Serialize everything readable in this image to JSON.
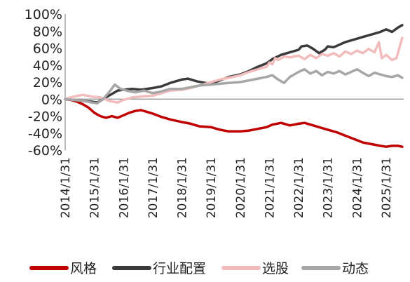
{
  "chart_data": {
    "type": "line",
    "title": "",
    "xlabel": "",
    "ylabel": "",
    "ylim": [
      -60,
      100
    ],
    "y_ticks": [
      "100%",
      "80%",
      "60%",
      "40%",
      "20%",
      "0%",
      "-20%",
      "-40%",
      "-60%"
    ],
    "y_tick_values": [
      100,
      80,
      60,
      40,
      20,
      0,
      -20,
      -40,
      -60
    ],
    "x_range": [
      2014.0,
      2025.6
    ],
    "x_ticks": [
      "2014/1/31",
      "2015/1/31",
      "2016/1/31",
      "2017/1/31",
      "2018/1/31",
      "2019/1/31",
      "2020/1/31",
      "2021/1/31",
      "2022/1/31",
      "2023/1/31",
      "2024/1/31",
      "2025/1/31"
    ],
    "x_tick_values": [
      2014.0,
      2015.0,
      2016.0,
      2017.0,
      2018.0,
      2019.0,
      2020.0,
      2021.0,
      2022.0,
      2023.0,
      2024.0,
      2025.0
    ],
    "grid": false,
    "legend_position": "bottom",
    "series": [
      {
        "name": "风格",
        "color": "#c00000",
        "points": [
          [
            2014.0,
            0
          ],
          [
            2014.2,
            -1
          ],
          [
            2014.4,
            -3
          ],
          [
            2014.6,
            -6
          ],
          [
            2014.8,
            -10
          ],
          [
            2015.0,
            -16
          ],
          [
            2015.2,
            -20
          ],
          [
            2015.4,
            -22
          ],
          [
            2015.6,
            -20
          ],
          [
            2015.8,
            -22
          ],
          [
            2016.0,
            -19
          ],
          [
            2016.2,
            -16
          ],
          [
            2016.4,
            -14
          ],
          [
            2016.6,
            -13
          ],
          [
            2016.8,
            -15
          ],
          [
            2017.0,
            -17
          ],
          [
            2017.3,
            -21
          ],
          [
            2017.6,
            -24
          ],
          [
            2018.0,
            -27
          ],
          [
            2018.3,
            -29
          ],
          [
            2018.6,
            -32
          ],
          [
            2019.0,
            -33
          ],
          [
            2019.3,
            -36
          ],
          [
            2019.6,
            -38
          ],
          [
            2020.0,
            -38
          ],
          [
            2020.3,
            -37
          ],
          [
            2020.6,
            -35
          ],
          [
            2020.9,
            -33
          ],
          [
            2021.1,
            -30
          ],
          [
            2021.4,
            -28
          ],
          [
            2021.7,
            -31
          ],
          [
            2022.0,
            -29
          ],
          [
            2022.2,
            -28
          ],
          [
            2022.4,
            -30
          ],
          [
            2022.7,
            -33
          ],
          [
            2023.0,
            -36
          ],
          [
            2023.3,
            -39
          ],
          [
            2023.6,
            -43
          ],
          [
            2023.9,
            -47
          ],
          [
            2024.2,
            -51
          ],
          [
            2024.5,
            -53
          ],
          [
            2024.8,
            -55
          ],
          [
            2025.0,
            -56
          ],
          [
            2025.2,
            -55
          ],
          [
            2025.4,
            -55
          ],
          [
            2025.55,
            -56
          ]
        ]
      },
      {
        "name": "行业配置",
        "color": "#3a3a3a",
        "points": [
          [
            2014.0,
            0
          ],
          [
            2014.3,
            -1
          ],
          [
            2014.6,
            -2
          ],
          [
            2014.9,
            -3
          ],
          [
            2015.1,
            -4
          ],
          [
            2015.4,
            2
          ],
          [
            2015.6,
            6
          ],
          [
            2015.8,
            10
          ],
          [
            2016.0,
            11
          ],
          [
            2016.3,
            12
          ],
          [
            2016.6,
            11
          ],
          [
            2017.0,
            13
          ],
          [
            2017.3,
            15
          ],
          [
            2017.6,
            19
          ],
          [
            2018.0,
            23
          ],
          [
            2018.2,
            24
          ],
          [
            2018.5,
            21
          ],
          [
            2018.8,
            19
          ],
          [
            2019.0,
            18
          ],
          [
            2019.3,
            22
          ],
          [
            2019.6,
            26
          ],
          [
            2020.0,
            29
          ],
          [
            2020.3,
            33
          ],
          [
            2020.6,
            38
          ],
          [
            2020.9,
            42
          ],
          [
            2021.1,
            47
          ],
          [
            2021.4,
            52
          ],
          [
            2021.7,
            55
          ],
          [
            2022.0,
            58
          ],
          [
            2022.1,
            62
          ],
          [
            2022.3,
            63
          ],
          [
            2022.5,
            59
          ],
          [
            2022.7,
            54
          ],
          [
            2022.9,
            58
          ],
          [
            2023.0,
            62
          ],
          [
            2023.2,
            61
          ],
          [
            2023.4,
            64
          ],
          [
            2023.6,
            67
          ],
          [
            2023.8,
            69
          ],
          [
            2024.0,
            71
          ],
          [
            2024.2,
            73
          ],
          [
            2024.4,
            75
          ],
          [
            2024.6,
            77
          ],
          [
            2024.8,
            79
          ],
          [
            2025.0,
            82
          ],
          [
            2025.2,
            79
          ],
          [
            2025.4,
            84
          ],
          [
            2025.55,
            87
          ]
        ]
      },
      {
        "name": "选股",
        "color": "#f2bcbc",
        "points": [
          [
            2014.0,
            0
          ],
          [
            2014.3,
            3
          ],
          [
            2014.6,
            5
          ],
          [
            2014.9,
            3
          ],
          [
            2015.2,
            2
          ],
          [
            2015.5,
            -2
          ],
          [
            2015.8,
            -4
          ],
          [
            2016.0,
            -1
          ],
          [
            2016.3,
            2
          ],
          [
            2016.6,
            3
          ],
          [
            2017.0,
            4
          ],
          [
            2017.3,
            7
          ],
          [
            2017.6,
            10
          ],
          [
            2018.0,
            11
          ],
          [
            2018.3,
            13
          ],
          [
            2018.6,
            16
          ],
          [
            2019.0,
            20
          ],
          [
            2019.3,
            23
          ],
          [
            2019.6,
            25
          ],
          [
            2020.0,
            28
          ],
          [
            2020.3,
            32
          ],
          [
            2020.6,
            35
          ],
          [
            2020.9,
            38
          ],
          [
            2021.0,
            43
          ],
          [
            2021.1,
            41
          ],
          [
            2021.2,
            48
          ],
          [
            2021.3,
            46
          ],
          [
            2021.5,
            50
          ],
          [
            2021.7,
            49
          ],
          [
            2022.0,
            51
          ],
          [
            2022.2,
            47
          ],
          [
            2022.4,
            52
          ],
          [
            2022.6,
            48
          ],
          [
            2022.8,
            53
          ],
          [
            2023.0,
            51
          ],
          [
            2023.2,
            54
          ],
          [
            2023.4,
            50
          ],
          [
            2023.6,
            56
          ],
          [
            2023.8,
            53
          ],
          [
            2024.0,
            57
          ],
          [
            2024.2,
            54
          ],
          [
            2024.4,
            59
          ],
          [
            2024.6,
            55
          ],
          [
            2024.75,
            67
          ],
          [
            2024.85,
            48
          ],
          [
            2025.0,
            52
          ],
          [
            2025.2,
            46
          ],
          [
            2025.35,
            48
          ],
          [
            2025.45,
            60
          ],
          [
            2025.55,
            72
          ]
        ]
      },
      {
        "name": "动态",
        "color": "#a6a6a6",
        "points": [
          [
            2014.0,
            0
          ],
          [
            2014.3,
            -1
          ],
          [
            2014.6,
            -2
          ],
          [
            2014.9,
            -4
          ],
          [
            2015.1,
            -5
          ],
          [
            2015.3,
            0
          ],
          [
            2015.5,
            8
          ],
          [
            2015.7,
            17
          ],
          [
            2015.9,
            12
          ],
          [
            2016.1,
            10
          ],
          [
            2016.4,
            8
          ],
          [
            2016.7,
            10
          ],
          [
            2017.0,
            7
          ],
          [
            2017.3,
            9
          ],
          [
            2017.6,
            12
          ],
          [
            2018.0,
            12
          ],
          [
            2018.3,
            14
          ],
          [
            2018.6,
            16
          ],
          [
            2019.0,
            17
          ],
          [
            2019.3,
            18
          ],
          [
            2019.6,
            19
          ],
          [
            2020.0,
            20
          ],
          [
            2020.3,
            22
          ],
          [
            2020.6,
            24
          ],
          [
            2020.9,
            26
          ],
          [
            2021.1,
            28
          ],
          [
            2021.3,
            23
          ],
          [
            2021.5,
            19
          ],
          [
            2021.7,
            26
          ],
          [
            2022.0,
            32
          ],
          [
            2022.2,
            35
          ],
          [
            2022.4,
            30
          ],
          [
            2022.6,
            33
          ],
          [
            2022.8,
            28
          ],
          [
            2023.0,
            32
          ],
          [
            2023.2,
            30
          ],
          [
            2023.4,
            33
          ],
          [
            2023.6,
            29
          ],
          [
            2023.8,
            32
          ],
          [
            2024.0,
            35
          ],
          [
            2024.2,
            31
          ],
          [
            2024.4,
            27
          ],
          [
            2024.6,
            31
          ],
          [
            2024.8,
            29
          ],
          [
            2025.0,
            27
          ],
          [
            2025.2,
            26
          ],
          [
            2025.4,
            28
          ],
          [
            2025.55,
            25
          ]
        ]
      }
    ]
  }
}
